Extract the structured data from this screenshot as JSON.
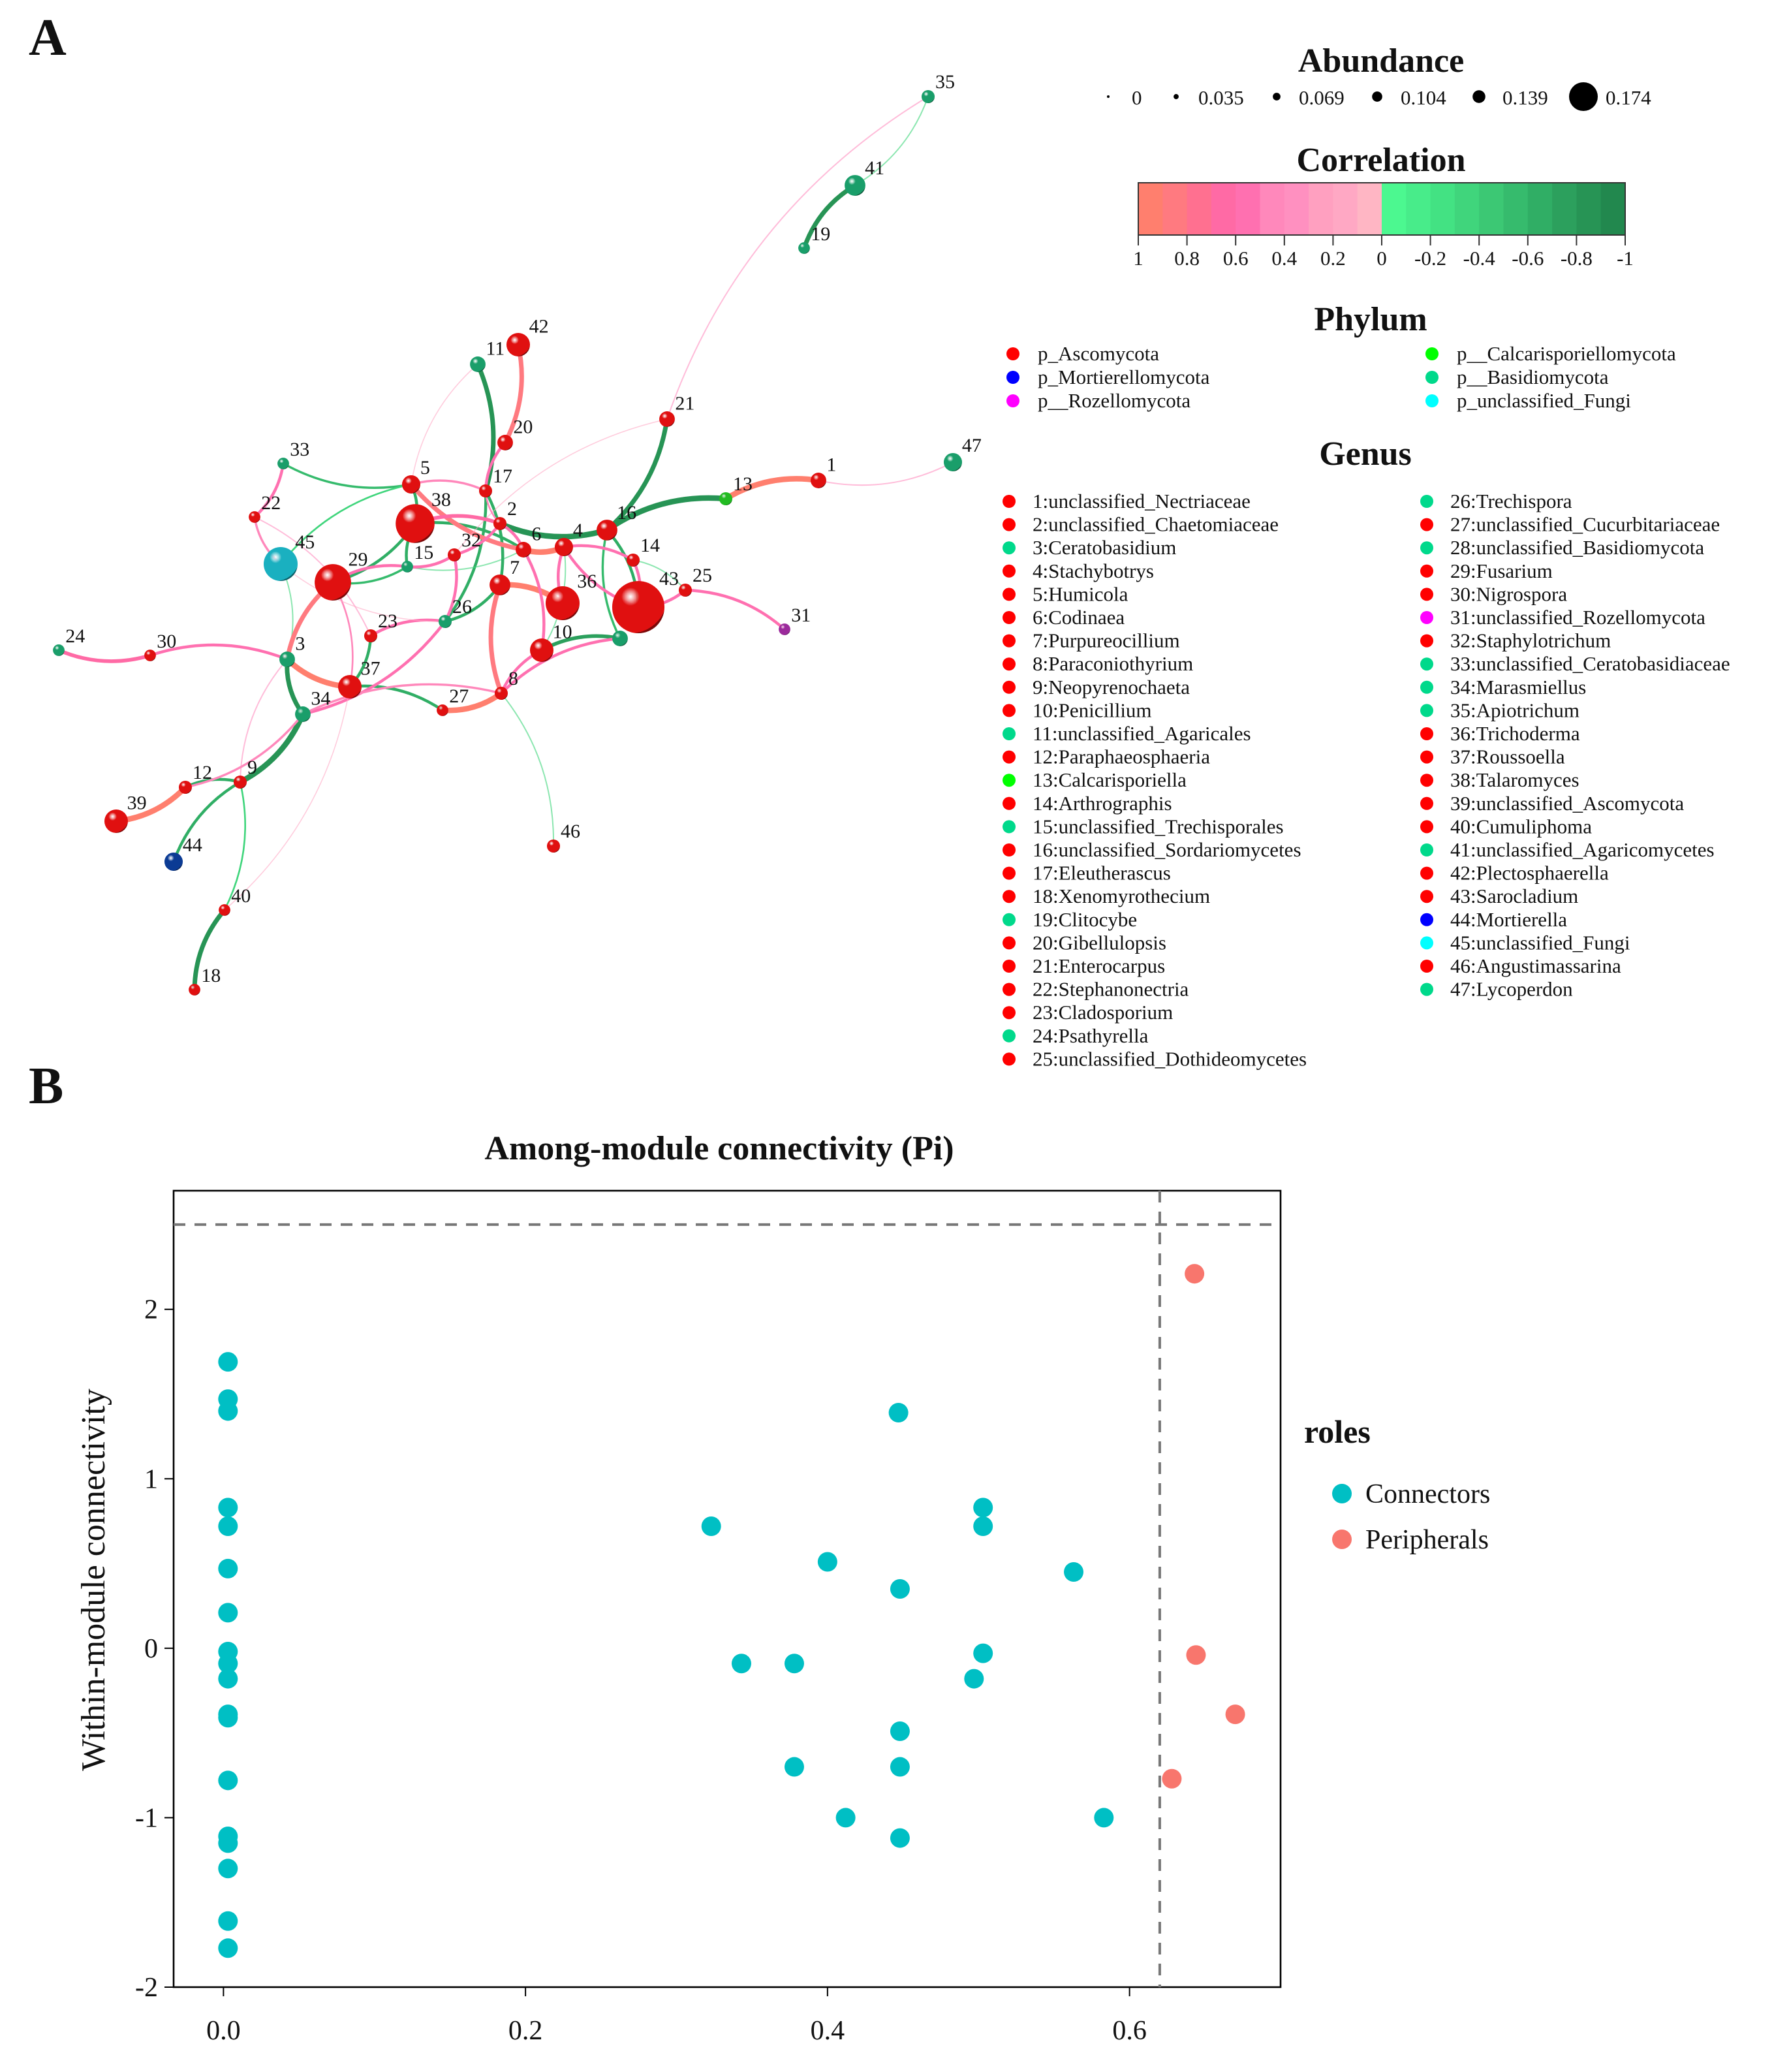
{
  "panels": {
    "a": "A",
    "b": "B"
  },
  "abundance_legend": {
    "title": "Abundance",
    "values": [
      0,
      0.035,
      0.069,
      0.104,
      0.139,
      0.174
    ],
    "labels": [
      "0",
      "0.035",
      "0.069",
      "0.104",
      "0.139",
      "0.174"
    ]
  },
  "correlation_legend": {
    "title": "Correlation",
    "ticks": [
      "1",
      "0.8",
      "0.6",
      "0.4",
      "0.2",
      "0",
      "-0.2",
      "-0.4",
      "-0.6",
      "-0.8",
      "-1"
    ],
    "colors": [
      "#ff7f6e",
      "#ff7a80",
      "#ff7090",
      "#ff6aa5",
      "#ff70b0",
      "#ff88bb",
      "#ff90c0",
      "#ffa0c0",
      "#ffa8c4",
      "#ffb6c4",
      "#4cf890",
      "#48ec8a",
      "#43e283",
      "#40d57c",
      "#3cc874",
      "#36bb6d",
      "#30ae65",
      "#2ca05d",
      "#279455",
      "#22884e"
    ]
  },
  "phylum_legend": {
    "title": "Phylum",
    "items": [
      {
        "label": "p_Ascomycota",
        "color": "#ff0000"
      },
      {
        "label": "p_Mortierellomycota",
        "color": "#0000ff"
      },
      {
        "label": "p__Rozellomycota",
        "color": "#ff00ff"
      },
      {
        "label": "p__Calcarisporiellomycota",
        "color": "#00ff00"
      },
      {
        "label": "p__Basidiomycota",
        "color": "#00d98b"
      },
      {
        "label": "p_unclassified_Fungi",
        "color": "#00ffff"
      }
    ]
  },
  "genus_legend": {
    "title": "Genus",
    "items": [
      {
        "label": "1:unclassified_Nectriaceae",
        "color": "#ff0000"
      },
      {
        "label": "2:unclassified_Chaetomiaceae",
        "color": "#ff0000"
      },
      {
        "label": "3:Ceratobasidium",
        "color": "#00d98b"
      },
      {
        "label": "4:Stachybotrys",
        "color": "#ff0000"
      },
      {
        "label": "5:Humicola",
        "color": "#ff0000"
      },
      {
        "label": "6:Codinaea",
        "color": "#ff0000"
      },
      {
        "label": "7:Purpureocillium",
        "color": "#ff0000"
      },
      {
        "label": "8:Paraconiothyrium",
        "color": "#ff0000"
      },
      {
        "label": "9:Neopyrenochaeta",
        "color": "#ff0000"
      },
      {
        "label": "10:Penicillium",
        "color": "#ff0000"
      },
      {
        "label": "11:unclassified_Agaricales",
        "color": "#00d98b"
      },
      {
        "label": "12:Paraphaeosphaeria",
        "color": "#ff0000"
      },
      {
        "label": "13:Calcarisporiella",
        "color": "#00ff00"
      },
      {
        "label": "14:Arthrographis",
        "color": "#ff0000"
      },
      {
        "label": "15:unclassified_Trechisporales",
        "color": "#00d98b"
      },
      {
        "label": "16:unclassified_Sordariomycetes",
        "color": "#ff0000"
      },
      {
        "label": "17:Eleutherascus",
        "color": "#ff0000"
      },
      {
        "label": "18:Xenomyrothecium",
        "color": "#ff0000"
      },
      {
        "label": "19:Clitocybe",
        "color": "#00d98b"
      },
      {
        "label": "20:Gibellulopsis",
        "color": "#ff0000"
      },
      {
        "label": "21:Enterocarpus",
        "color": "#ff0000"
      },
      {
        "label": "22:Stephanonectria",
        "color": "#ff0000"
      },
      {
        "label": "23:Cladosporium",
        "color": "#ff0000"
      },
      {
        "label": "24:Psathyrella",
        "color": "#00d98b"
      },
      {
        "label": "25:unclassified_Dothideomycetes",
        "color": "#ff0000"
      },
      {
        "label": "26:Trechispora",
        "color": "#00d98b"
      },
      {
        "label": "27:unclassified_Cucurbitariaceae",
        "color": "#ff0000"
      },
      {
        "label": "28:unclassified_Basidiomycota",
        "color": "#00d98b"
      },
      {
        "label": "29:Fusarium",
        "color": "#ff0000"
      },
      {
        "label": "30:Nigrospora",
        "color": "#ff0000"
      },
      {
        "label": "31:unclassified_Rozellomycota",
        "color": "#ff00ff"
      },
      {
        "label": "32:Staphylotrichum",
        "color": "#ff0000"
      },
      {
        "label": "33:unclassified_Ceratobasidiaceae",
        "color": "#00d98b"
      },
      {
        "label": "34:Marasmiellus",
        "color": "#00d98b"
      },
      {
        "label": "35:Apiotrichum",
        "color": "#00d98b"
      },
      {
        "label": "36:Trichoderma",
        "color": "#ff0000"
      },
      {
        "label": "37:Roussoella",
        "color": "#ff0000"
      },
      {
        "label": "38:Talaromyces",
        "color": "#ff0000"
      },
      {
        "label": "39:unclassified_Ascomycota",
        "color": "#ff0000"
      },
      {
        "label": "40:Cumuliphoma",
        "color": "#ff0000"
      },
      {
        "label": "41:unclassified_Agaricomycetes",
        "color": "#00d98b"
      },
      {
        "label": "42:Plectosphaerella",
        "color": "#ff0000"
      },
      {
        "label": "43:Sarocladium",
        "color": "#ff0000"
      },
      {
        "label": "44:Mortierella",
        "color": "#0000ff"
      },
      {
        "label": "45:unclassified_Fungi",
        "color": "#00ffff"
      },
      {
        "label": "46:Angustimassarina",
        "color": "#ff0000"
      },
      {
        "label": "47:Lycoperdon",
        "color": "#00d98b"
      }
    ]
  },
  "network": {
    "phylum_colors": {
      "Ascomycota": "#e01010",
      "Basidiomycota": "#1a9e6a",
      "Calcarisporiellomycota": "#22bb22",
      "Rozellomycota": "#9b2a9b",
      "Mortierellomycota": "#0b3b94",
      "unclassified_Fungi": "#1ab0c0"
    },
    "nodes": [
      {
        "id": "1",
        "phylum": "Ascomycota",
        "abundance": 0.026
      },
      {
        "id": "2",
        "phylum": "Ascomycota",
        "abundance": 0.016
      },
      {
        "id": "3",
        "phylum": "Basidiomycota",
        "abundance": 0.026
      },
      {
        "id": "4",
        "phylum": "Ascomycota",
        "abundance": 0.037
      },
      {
        "id": "5",
        "phylum": "Ascomycota",
        "abundance": 0.037
      },
      {
        "id": "6",
        "phylum": "Ascomycota",
        "abundance": 0.026
      },
      {
        "id": "7",
        "phylum": "Ascomycota",
        "abundance": 0.047
      },
      {
        "id": "8",
        "phylum": "Ascomycota",
        "abundance": 0.016
      },
      {
        "id": "9",
        "phylum": "Ascomycota",
        "abundance": 0.016
      },
      {
        "id": "10",
        "phylum": "Ascomycota",
        "abundance": 0.058
      },
      {
        "id": "11",
        "phylum": "Basidiomycota",
        "abundance": 0.026
      },
      {
        "id": "12",
        "phylum": "Ascomycota",
        "abundance": 0.016
      },
      {
        "id": "13",
        "phylum": "Calcarisporiellomycota",
        "abundance": 0.016
      },
      {
        "id": "14",
        "phylum": "Ascomycota",
        "abundance": 0.016
      },
      {
        "id": "15",
        "phylum": "Basidiomycota",
        "abundance": 0.01
      },
      {
        "id": "16",
        "phylum": "Ascomycota",
        "abundance": 0.047
      },
      {
        "id": "17",
        "phylum": "Ascomycota",
        "abundance": 0.016
      },
      {
        "id": "18",
        "phylum": "Ascomycota",
        "abundance": 0.01
      },
      {
        "id": "19",
        "phylum": "Basidiomycota",
        "abundance": 0.01
      },
      {
        "id": "20",
        "phylum": "Ascomycota",
        "abundance": 0.026
      },
      {
        "id": "21",
        "phylum": "Ascomycota",
        "abundance": 0.026
      },
      {
        "id": "22",
        "phylum": "Ascomycota",
        "abundance": 0.01
      },
      {
        "id": "23",
        "phylum": "Ascomycota",
        "abundance": 0.016
      },
      {
        "id": "24",
        "phylum": "Basidiomycota",
        "abundance": 0.01
      },
      {
        "id": "25",
        "phylum": "Ascomycota",
        "abundance": 0.016
      },
      {
        "id": "26",
        "phylum": "Basidiomycota",
        "abundance": 0.016
      },
      {
        "id": "27",
        "phylum": "Ascomycota",
        "abundance": 0.01
      },
      {
        "id": "28",
        "phylum": "Basidiomycota",
        "abundance": 0.026
      },
      {
        "id": "29",
        "phylum": "Ascomycota",
        "abundance": 0.11
      },
      {
        "id": "30",
        "phylum": "Ascomycota",
        "abundance": 0.01
      },
      {
        "id": "31",
        "phylum": "Rozellomycota",
        "abundance": 0.01
      },
      {
        "id": "32",
        "phylum": "Ascomycota",
        "abundance": 0.016
      },
      {
        "id": "33",
        "phylum": "Basidiomycota",
        "abundance": 0.01
      },
      {
        "id": "34",
        "phylum": "Basidiomycota",
        "abundance": 0.026
      },
      {
        "id": "35",
        "phylum": "Basidiomycota",
        "abundance": 0.016
      },
      {
        "id": "36",
        "phylum": "Ascomycota",
        "abundance": 0.1
      },
      {
        "id": "37",
        "phylum": "Ascomycota",
        "abundance": 0.058
      },
      {
        "id": "38",
        "phylum": "Ascomycota",
        "abundance": 0.12
      },
      {
        "id": "39",
        "phylum": "Ascomycota",
        "abundance": 0.058
      },
      {
        "id": "40",
        "phylum": "Ascomycota",
        "abundance": 0.01
      },
      {
        "id": "41",
        "phylum": "Basidiomycota",
        "abundance": 0.047
      },
      {
        "id": "42",
        "phylum": "Ascomycota",
        "abundance": 0.058
      },
      {
        "id": "43",
        "phylum": "Ascomycota",
        "abundance": 0.174
      },
      {
        "id": "44",
        "phylum": "Mortierellomycota",
        "abundance": 0.037
      },
      {
        "id": "45",
        "phylum": "unclassified_Fungi",
        "abundance": 0.1
      },
      {
        "id": "46",
        "phylum": "Ascomycota",
        "abundance": 0.016
      },
      {
        "id": "47",
        "phylum": "Basidiomycota",
        "abundance": 0.037
      }
    ],
    "edges": [
      [
        "35",
        "41",
        -0.3
      ],
      [
        "41",
        "19",
        -0.8
      ],
      [
        "11",
        "17",
        -0.8
      ],
      [
        "16",
        "21",
        -0.8
      ],
      [
        "16",
        "13",
        -0.9
      ],
      [
        "2",
        "16",
        -0.9
      ],
      [
        "17",
        "26",
        -0.6
      ],
      [
        "38",
        "15",
        -0.6
      ],
      [
        "5",
        "38",
        -0.6
      ],
      [
        "33",
        "5",
        -0.5
      ],
      [
        "45",
        "5",
        -0.4
      ],
      [
        "29",
        "38",
        -0.6
      ],
      [
        "45",
        "3",
        -0.3
      ],
      [
        "3",
        "34",
        -0.8
      ],
      [
        "34",
        "9",
        -0.9
      ],
      [
        "9",
        "44",
        -0.6
      ],
      [
        "9",
        "40",
        -0.4
      ],
      [
        "40",
        "18",
        -0.8
      ],
      [
        "12",
        "9",
        -0.6
      ],
      [
        "37",
        "23",
        -0.6
      ],
      [
        "37",
        "27",
        -0.6
      ],
      [
        "28",
        "10",
        -0.7
      ],
      [
        "8",
        "46",
        -0.3
      ],
      [
        "26",
        "7",
        -0.6
      ],
      [
        "16",
        "43",
        -0.6
      ],
      [
        "16",
        "28",
        -0.5
      ],
      [
        "14",
        "25",
        -0.3
      ],
      [
        "15",
        "6",
        -0.3
      ],
      [
        "38",
        "6",
        -0.6
      ],
      [
        "29",
        "15",
        -0.5
      ],
      [
        "17",
        "7",
        -0.6
      ],
      [
        "10",
        "4",
        -0.3
      ],
      [
        "42",
        "20",
        0.8
      ],
      [
        "20",
        "17",
        0.6
      ],
      [
        "5",
        "17",
        0.5
      ],
      [
        "5",
        "6",
        0.8
      ],
      [
        "13",
        "1",
        0.9
      ],
      [
        "1",
        "47",
        0.3
      ],
      [
        "21",
        "35",
        0.3
      ],
      [
        "21",
        "32",
        0.2
      ],
      [
        "33",
        "22",
        0.6
      ],
      [
        "22",
        "45",
        0.5
      ],
      [
        "22",
        "23",
        0.3
      ],
      [
        "29",
        "3",
        0.8
      ],
      [
        "29",
        "37",
        0.4
      ],
      [
        "24",
        "30",
        0.7
      ],
      [
        "30",
        "3",
        0.6
      ],
      [
        "3",
        "37",
        0.9
      ],
      [
        "23",
        "26",
        0.6
      ],
      [
        "26",
        "32",
        0.6
      ],
      [
        "7",
        "36",
        0.9
      ],
      [
        "7",
        "8",
        0.8
      ],
      [
        "36",
        "4",
        0.6
      ],
      [
        "10",
        "8",
        0.6
      ],
      [
        "8",
        "27",
        0.9
      ],
      [
        "34",
        "26",
        0.6
      ],
      [
        "8",
        "28",
        0.6
      ],
      [
        "43",
        "25",
        0.6
      ],
      [
        "25",
        "31",
        0.6
      ],
      [
        "4",
        "43",
        0.6
      ],
      [
        "14",
        "43",
        0.6
      ],
      [
        "6",
        "4",
        0.9
      ],
      [
        "2",
        "6",
        0.6
      ],
      [
        "32",
        "2",
        0.6
      ],
      [
        "32",
        "15",
        0.6
      ],
      [
        "15",
        "29",
        0.6
      ],
      [
        "12",
        "39",
        0.9
      ],
      [
        "12",
        "34",
        0.5
      ],
      [
        "9",
        "3",
        0.3
      ],
      [
        "40",
        "37",
        0.2
      ],
      [
        "38",
        "2",
        0.7
      ],
      [
        "11",
        "5",
        0.2
      ],
      [
        "34",
        "8",
        0.5
      ],
      [
        "45",
        "26",
        0.2
      ],
      [
        "6",
        "10",
        0.6
      ],
      [
        "17",
        "2",
        0.4
      ],
      [
        "4",
        "14",
        0.6
      ]
    ]
  },
  "chart_data": {
    "type": "scatter",
    "title": "Among-module connectivity (Pi)",
    "xlabel": "",
    "ylabel": "Within-module connectivity",
    "xlim": [
      -0.033,
      0.7
    ],
    "ylim": [
      -2.0,
      2.7
    ],
    "xticks": [
      "0.0",
      "0.2",
      "0.4",
      "0.6"
    ],
    "xtick_values": [
      0,
      0.2,
      0.4,
      0.6
    ],
    "yticks": [
      "-2",
      "-1",
      "0",
      "1",
      "2"
    ],
    "ytick_values": [
      -2,
      -1,
      0,
      1,
      2
    ],
    "grid": false,
    "thresholds": {
      "x": 0.62,
      "y": 2.5
    },
    "legend": {
      "title": "roles",
      "placement": "right"
    },
    "series": [
      {
        "name": "Connectors",
        "color": "#00bfc4",
        "points": [
          [
            0.003,
            1.69
          ],
          [
            0.003,
            1.47
          ],
          [
            0.003,
            1.4
          ],
          [
            0.003,
            0.83
          ],
          [
            0.003,
            0.72
          ],
          [
            0.003,
            0.47
          ],
          [
            0.003,
            0.21
          ],
          [
            0.003,
            -0.02
          ],
          [
            0.003,
            -0.09
          ],
          [
            0.003,
            -0.18
          ],
          [
            0.003,
            -0.39
          ],
          [
            0.003,
            -0.41
          ],
          [
            0.003,
            -0.78
          ],
          [
            0.003,
            -1.11
          ],
          [
            0.003,
            -1.15
          ],
          [
            0.003,
            -1.3
          ],
          [
            0.003,
            -1.61
          ],
          [
            0.003,
            -1.77
          ],
          [
            0.323,
            0.72
          ],
          [
            0.343,
            -0.09
          ],
          [
            0.378,
            -0.09
          ],
          [
            0.4,
            0.51
          ],
          [
            0.412,
            -1.0
          ],
          [
            0.447,
            1.39
          ],
          [
            0.448,
            0.35
          ],
          [
            0.448,
            -0.49
          ],
          [
            0.448,
            -0.7
          ],
          [
            0.378,
            -0.7
          ],
          [
            0.448,
            -1.12
          ],
          [
            0.503,
            0.83
          ],
          [
            0.503,
            0.72
          ],
          [
            0.503,
            -0.03
          ],
          [
            0.497,
            -0.18
          ],
          [
            0.563,
            0.45
          ],
          [
            0.583,
            -1.0
          ]
        ]
      },
      {
        "name": "Peripherals",
        "color": "#f8766d",
        "points": [
          [
            0.643,
            2.21
          ],
          [
            0.644,
            -0.04
          ],
          [
            0.67,
            -0.39
          ],
          [
            0.628,
            -0.77
          ]
        ]
      }
    ]
  }
}
